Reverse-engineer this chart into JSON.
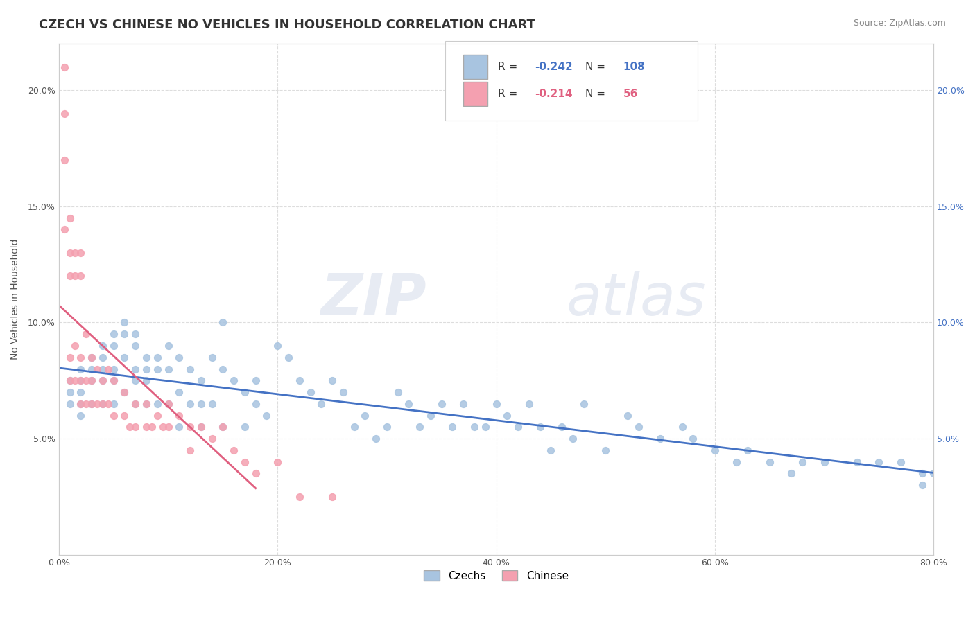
{
  "title": "CZECH VS CHINESE NO VEHICLES IN HOUSEHOLD CORRELATION CHART",
  "source_text": "Source: ZipAtlas.com",
  "ylabel": "No Vehicles in Household",
  "xlim": [
    0.0,
    0.8
  ],
  "ylim": [
    0.0,
    0.22
  ],
  "xtick_values": [
    0.0,
    0.2,
    0.4,
    0.6,
    0.8
  ],
  "ytick_values": [
    0.05,
    0.1,
    0.15,
    0.2
  ],
  "ytick_labels": [
    "5.0%",
    "10.0%",
    "15.0%",
    "20.0%"
  ],
  "czech_color": "#a8c4e0",
  "chinese_color": "#f4a0b0",
  "czech_line_color": "#4472c4",
  "chinese_line_color": "#e06080",
  "czech_R": -0.242,
  "czech_N": 108,
  "chinese_R": -0.214,
  "chinese_N": 56,
  "watermark_zip": "ZIP",
  "watermark_atlas": "atlas",
  "legend_czech_label": "Czechs",
  "legend_chinese_label": "Chinese",
  "czech_x": [
    0.01,
    0.01,
    0.01,
    0.02,
    0.02,
    0.02,
    0.02,
    0.02,
    0.03,
    0.03,
    0.03,
    0.03,
    0.04,
    0.04,
    0.04,
    0.04,
    0.04,
    0.05,
    0.05,
    0.05,
    0.05,
    0.05,
    0.06,
    0.06,
    0.06,
    0.06,
    0.07,
    0.07,
    0.07,
    0.07,
    0.07,
    0.08,
    0.08,
    0.08,
    0.08,
    0.09,
    0.09,
    0.09,
    0.1,
    0.1,
    0.1,
    0.11,
    0.11,
    0.11,
    0.12,
    0.12,
    0.13,
    0.13,
    0.13,
    0.14,
    0.14,
    0.15,
    0.15,
    0.15,
    0.16,
    0.17,
    0.17,
    0.18,
    0.18,
    0.19,
    0.2,
    0.21,
    0.22,
    0.23,
    0.24,
    0.25,
    0.26,
    0.27,
    0.28,
    0.29,
    0.3,
    0.31,
    0.32,
    0.33,
    0.34,
    0.35,
    0.36,
    0.37,
    0.38,
    0.39,
    0.4,
    0.41,
    0.42,
    0.43,
    0.44,
    0.45,
    0.46,
    0.47,
    0.48,
    0.5,
    0.52,
    0.53,
    0.55,
    0.57,
    0.58,
    0.6,
    0.62,
    0.63,
    0.65,
    0.67,
    0.68,
    0.7,
    0.73,
    0.75,
    0.77,
    0.79,
    0.79,
    0.8
  ],
  "czech_y": [
    0.075,
    0.07,
    0.065,
    0.08,
    0.075,
    0.07,
    0.065,
    0.06,
    0.085,
    0.08,
    0.075,
    0.065,
    0.09,
    0.085,
    0.08,
    0.075,
    0.065,
    0.095,
    0.09,
    0.08,
    0.075,
    0.065,
    0.1,
    0.095,
    0.085,
    0.07,
    0.095,
    0.09,
    0.08,
    0.075,
    0.065,
    0.085,
    0.08,
    0.075,
    0.065,
    0.085,
    0.08,
    0.065,
    0.09,
    0.08,
    0.065,
    0.085,
    0.07,
    0.055,
    0.08,
    0.065,
    0.075,
    0.065,
    0.055,
    0.085,
    0.065,
    0.1,
    0.08,
    0.055,
    0.075,
    0.07,
    0.055,
    0.075,
    0.065,
    0.06,
    0.09,
    0.085,
    0.075,
    0.07,
    0.065,
    0.075,
    0.07,
    0.055,
    0.06,
    0.05,
    0.055,
    0.07,
    0.065,
    0.055,
    0.06,
    0.065,
    0.055,
    0.065,
    0.055,
    0.055,
    0.065,
    0.06,
    0.055,
    0.065,
    0.055,
    0.045,
    0.055,
    0.05,
    0.065,
    0.045,
    0.06,
    0.055,
    0.05,
    0.055,
    0.05,
    0.045,
    0.04,
    0.045,
    0.04,
    0.035,
    0.04,
    0.04,
    0.04,
    0.04,
    0.04,
    0.035,
    0.03,
    0.035
  ],
  "chinese_x": [
    0.005,
    0.005,
    0.005,
    0.005,
    0.01,
    0.01,
    0.01,
    0.01,
    0.01,
    0.015,
    0.015,
    0.015,
    0.015,
    0.02,
    0.02,
    0.02,
    0.02,
    0.02,
    0.025,
    0.025,
    0.025,
    0.03,
    0.03,
    0.03,
    0.035,
    0.035,
    0.04,
    0.04,
    0.045,
    0.045,
    0.05,
    0.05,
    0.06,
    0.06,
    0.065,
    0.07,
    0.07,
    0.08,
    0.08,
    0.085,
    0.09,
    0.095,
    0.1,
    0.1,
    0.11,
    0.12,
    0.12,
    0.13,
    0.14,
    0.15,
    0.16,
    0.17,
    0.18,
    0.2,
    0.22,
    0.25
  ],
  "chinese_y": [
    0.21,
    0.19,
    0.17,
    0.14,
    0.145,
    0.13,
    0.12,
    0.085,
    0.075,
    0.13,
    0.12,
    0.09,
    0.075,
    0.13,
    0.12,
    0.085,
    0.075,
    0.065,
    0.095,
    0.075,
    0.065,
    0.085,
    0.075,
    0.065,
    0.08,
    0.065,
    0.075,
    0.065,
    0.08,
    0.065,
    0.075,
    0.06,
    0.07,
    0.06,
    0.055,
    0.065,
    0.055,
    0.065,
    0.055,
    0.055,
    0.06,
    0.055,
    0.065,
    0.055,
    0.06,
    0.055,
    0.045,
    0.055,
    0.05,
    0.055,
    0.045,
    0.04,
    0.035,
    0.04,
    0.025,
    0.025
  ],
  "bg_color": "#ffffff",
  "grid_color": "#dddddd",
  "title_fontsize": 13,
  "axis_label_fontsize": 10,
  "tick_fontsize": 9,
  "legend_fontsize": 11,
  "source_fontsize": 9
}
